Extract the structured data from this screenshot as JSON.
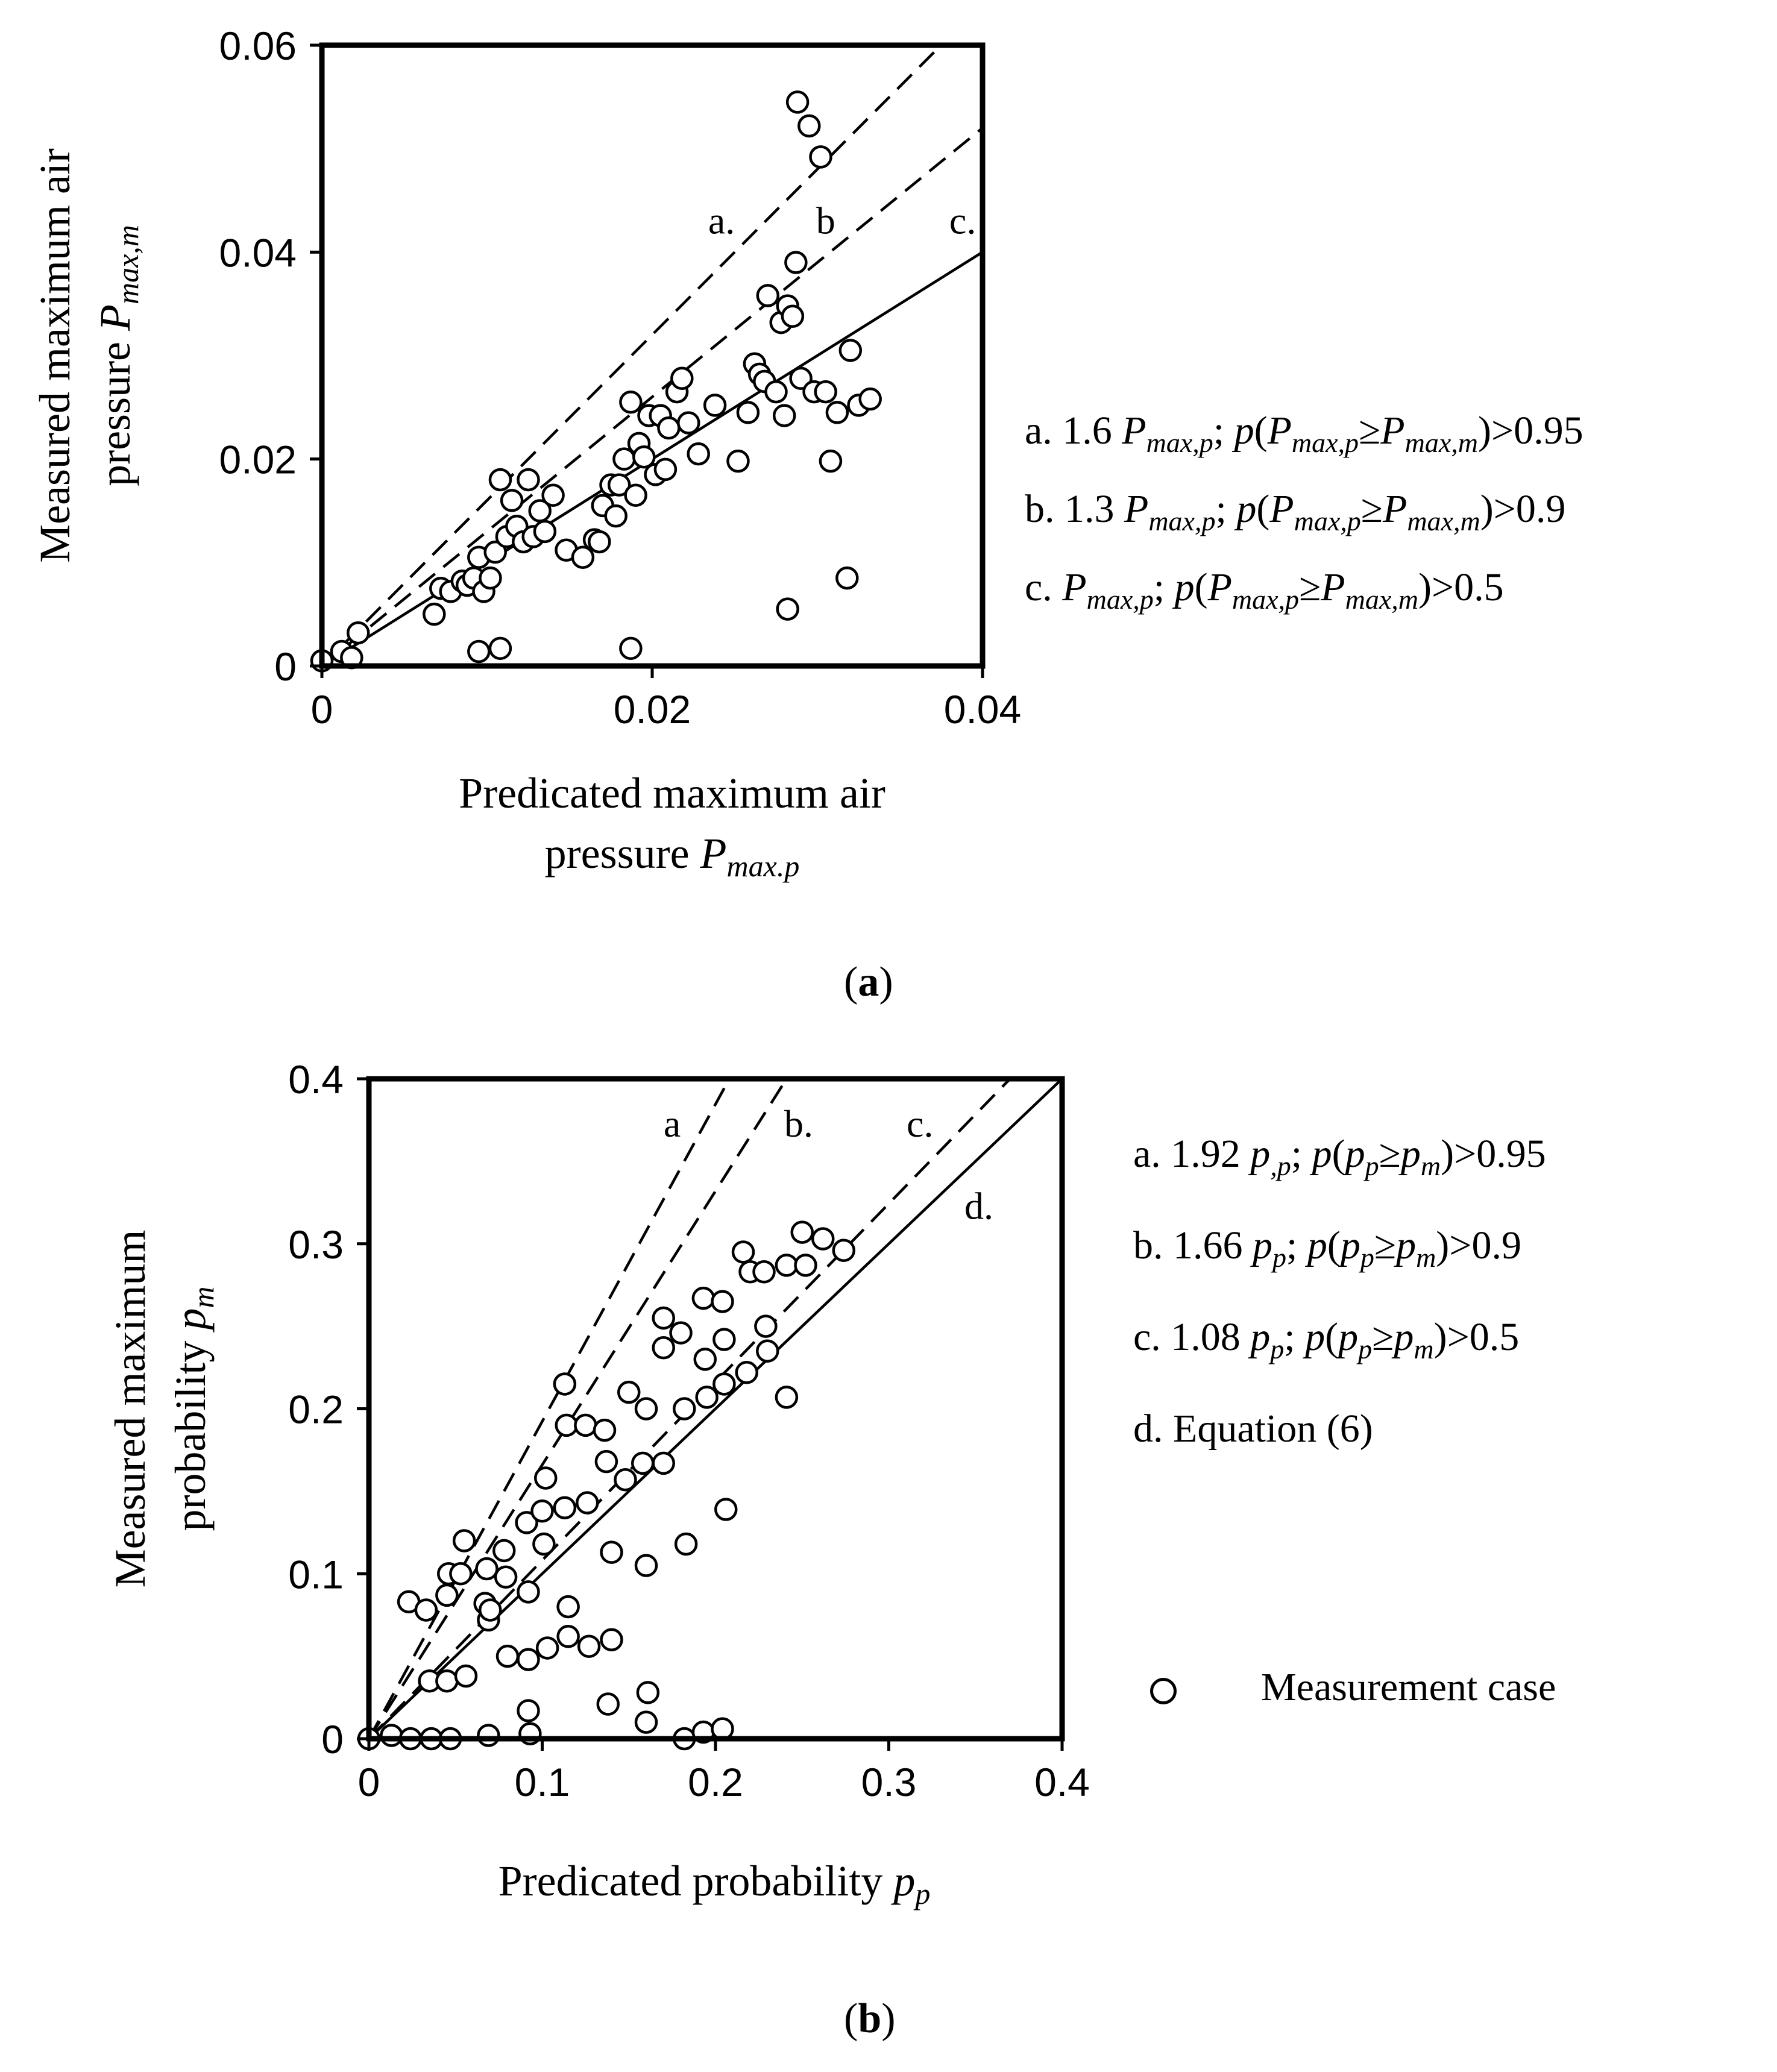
{
  "chart_data": [
    {
      "panel": "(a)",
      "panel_label": "a",
      "type": "scatter",
      "xlabel": "Predicated maximum air pressure P_max.p",
      "xlabel_lines": [
        "Predicated maximum air",
        "pressure "
      ],
      "xlabel_symbol": {
        "base": "P",
        "sub": "max.p"
      },
      "ylabel_lines": [
        "Measured maximum air",
        "pressure "
      ],
      "ylabel_symbol": {
        "base": "P",
        "sub": "max,m"
      },
      "xlim": [
        0,
        0.04
      ],
      "ylim": [
        0,
        0.06
      ],
      "xticks": [
        {
          "v": 0,
          "label": "0"
        },
        {
          "v": 0.02,
          "label": "0.02"
        },
        {
          "v": 0.04,
          "label": "0.04"
        }
      ],
      "yticks": [
        {
          "v": 0,
          "label": "0"
        },
        {
          "v": 0.02,
          "label": "0.02"
        },
        {
          "v": 0.04,
          "label": "0.04"
        },
        {
          "v": 0.06,
          "label": "0.06"
        }
      ],
      "lines": [
        {
          "id": "a",
          "label": "a.",
          "style": "dashed",
          "x": [
            0,
            0.0378
          ],
          "y": [
            0,
            0.0605
          ],
          "label_at": [
            0.0242,
            0.0418
          ]
        },
        {
          "id": "b",
          "label": "b",
          "style": "dashed",
          "x": [
            0,
            0.04
          ],
          "y": [
            0,
            0.052
          ],
          "label_at": [
            0.0305,
            0.0418
          ]
        },
        {
          "id": "c",
          "label": "c.",
          "style": "solid",
          "x": [
            0,
            0.04
          ],
          "y": [
            0,
            0.04
          ],
          "label_at": [
            0.0388,
            0.0418
          ]
        }
      ],
      "legend": [
        {
          "prefix": "a. 1.6 ",
          "k": "1.6",
          "threshold": ">0.95"
        },
        {
          "prefix": "b. 1.3 ",
          "k": "1.3",
          "threshold": ">0.9"
        },
        {
          "prefix": "c. ",
          "k": "1",
          "threshold": ">0.5"
        }
      ],
      "legend_symbols": {
        "p": "p",
        "Pp_sub": "max,p",
        "Pm_sub": "max,m",
        "P": "P",
        "geq": "≥"
      },
      "points": [
        [
          0.0,
          0.0005
        ],
        [
          0.0012,
          0.0014
        ],
        [
          0.0018,
          0.0008
        ],
        [
          0.0022,
          0.0032
        ],
        [
          0.0068,
          0.005
        ],
        [
          0.0072,
          0.0075
        ],
        [
          0.0078,
          0.0072
        ],
        [
          0.0085,
          0.0082
        ],
        [
          0.0088,
          0.0078
        ],
        [
          0.0092,
          0.0085
        ],
        [
          0.0098,
          0.0072
        ],
        [
          0.0095,
          0.0105
        ],
        [
          0.0102,
          0.0085
        ],
        [
          0.0105,
          0.011
        ],
        [
          0.0108,
          0.018
        ],
        [
          0.0112,
          0.0125
        ],
        [
          0.0115,
          0.016
        ],
        [
          0.0118,
          0.0135
        ],
        [
          0.0122,
          0.012
        ],
        [
          0.0125,
          0.018
        ],
        [
          0.0128,
          0.0125
        ],
        [
          0.0132,
          0.015
        ],
        [
          0.0135,
          0.013
        ],
        [
          0.014,
          0.0165
        ],
        [
          0.0148,
          0.0112
        ],
        [
          0.0158,
          0.0105
        ],
        [
          0.0165,
          0.0122
        ],
        [
          0.0168,
          0.012
        ],
        [
          0.017,
          0.0155
        ],
        [
          0.0175,
          0.0175
        ],
        [
          0.0178,
          0.0145
        ],
        [
          0.018,
          0.0175
        ],
        [
          0.0183,
          0.02
        ],
        [
          0.0187,
          0.0255
        ],
        [
          0.019,
          0.0165
        ],
        [
          0.0192,
          0.0215
        ],
        [
          0.0195,
          0.0202
        ],
        [
          0.0198,
          0.0242
        ],
        [
          0.0202,
          0.0185
        ],
        [
          0.0205,
          0.0242
        ],
        [
          0.0208,
          0.019
        ],
        [
          0.021,
          0.023
        ],
        [
          0.0215,
          0.0265
        ],
        [
          0.0218,
          0.0278
        ],
        [
          0.0222,
          0.0235
        ],
        [
          0.0228,
          0.0205
        ],
        [
          0.0238,
          0.0252
        ],
        [
          0.0252,
          0.0198
        ],
        [
          0.0258,
          0.0245
        ],
        [
          0.0262,
          0.0292
        ],
        [
          0.0265,
          0.0282
        ],
        [
          0.0268,
          0.0275
        ],
        [
          0.027,
          0.0358
        ],
        [
          0.0275,
          0.0265
        ],
        [
          0.0278,
          0.0332
        ],
        [
          0.028,
          0.0242
        ],
        [
          0.0282,
          0.0348
        ],
        [
          0.0285,
          0.0338
        ],
        [
          0.0287,
          0.039
        ],
        [
          0.0288,
          0.0545
        ],
        [
          0.029,
          0.0278
        ],
        [
          0.0295,
          0.0522
        ],
        [
          0.0298,
          0.0265
        ],
        [
          0.0302,
          0.0492
        ],
        [
          0.0305,
          0.0265
        ],
        [
          0.0308,
          0.0198
        ],
        [
          0.0312,
          0.0245
        ],
        [
          0.0318,
          0.0085
        ],
        [
          0.032,
          0.0305
        ],
        [
          0.0325,
          0.0252
        ],
        [
          0.0332,
          0.0258
        ],
        [
          0.0095,
          0.0014
        ],
        [
          0.0108,
          0.0017
        ],
        [
          0.0187,
          0.0017
        ],
        [
          0.0282,
          0.0055
        ]
      ]
    },
    {
      "panel": "(b)",
      "panel_label": "b",
      "type": "scatter",
      "xlabel": "Predicated probability p_p",
      "xlabel_lines": [
        "Predicated probability "
      ],
      "xlabel_symbol": {
        "base": "p",
        "sub": "p"
      },
      "ylabel_lines": [
        "Measured maximum",
        "probability "
      ],
      "ylabel_symbol": {
        "base": "p",
        "sub": "m"
      },
      "xlim": [
        0,
        0.4
      ],
      "ylim": [
        0,
        0.4
      ],
      "xticks": [
        {
          "v": 0,
          "label": "0"
        },
        {
          "v": 0.1,
          "label": "0.1"
        },
        {
          "v": 0.2,
          "label": "0.2"
        },
        {
          "v": 0.3,
          "label": "0.3"
        },
        {
          "v": 0.4,
          "label": "0.4"
        }
      ],
      "yticks": [
        {
          "v": 0,
          "label": "0"
        },
        {
          "v": 0.1,
          "label": "0.1"
        },
        {
          "v": 0.2,
          "label": "0.2"
        },
        {
          "v": 0.3,
          "label": "0.3"
        },
        {
          "v": 0.4,
          "label": "0.4"
        }
      ],
      "lines": [
        {
          "id": "a",
          "label": "a",
          "style": "dashed",
          "x": [
            0,
            0.208
          ],
          "y": [
            0,
            0.4
          ],
          "label_at": [
            0.175,
            0.365
          ]
        },
        {
          "id": "b",
          "label": "b.",
          "style": "dashed",
          "x": [
            0,
            0.241
          ],
          "y": [
            0,
            0.4
          ],
          "label_at": [
            0.248,
            0.365
          ]
        },
        {
          "id": "c",
          "label": "c.",
          "style": "dashed",
          "x": [
            0,
            0.37
          ],
          "y": [
            0,
            0.4
          ],
          "label_at": [
            0.318,
            0.365
          ]
        },
        {
          "id": "d",
          "label": "d.",
          "style": "solid",
          "x": [
            0,
            0.1,
            0.2,
            0.3,
            0.35,
            0.4
          ],
          "y": [
            0,
            0.1,
            0.2,
            0.3,
            0.35,
            0.4
          ],
          "label_at": [
            0.352,
            0.315
          ]
        }
      ],
      "legend": [
        {
          "prefix": "a. 1.92 ",
          "k": "1.92",
          "sym_sub": ",p",
          "threshold": ">0.95"
        },
        {
          "prefix": "b. 1.66 ",
          "k": "1.66",
          "sym_sub": "p",
          "threshold": ">0.9"
        },
        {
          "prefix": "c. 1.08 ",
          "k": "1.08",
          "sym_sub": "p",
          "threshold": ">0.5"
        }
      ],
      "legend_eq": "d. Equation (6)",
      "legend_marker": "Measurement case",
      "legend_symbols": {
        "p": "p",
        "pp": "p",
        "pm": "m",
        "geq": "≥"
      },
      "points": [
        [
          0.0,
          0.0
        ],
        [
          0.013,
          0.002
        ],
        [
          0.024,
          0.0
        ],
        [
          0.036,
          0.0
        ],
        [
          0.047,
          0.0
        ],
        [
          0.069,
          0.002
        ],
        [
          0.093,
          0.003
        ],
        [
          0.023,
          0.083
        ],
        [
          0.033,
          0.078
        ],
        [
          0.035,
          0.035
        ],
        [
          0.045,
          0.035
        ],
        [
          0.046,
          0.1
        ],
        [
          0.045,
          0.087
        ],
        [
          0.053,
          0.1
        ],
        [
          0.055,
          0.12
        ],
        [
          0.056,
          0.038
        ],
        [
          0.067,
          0.082
        ],
        [
          0.068,
          0.103
        ],
        [
          0.069,
          0.072
        ],
        [
          0.07,
          0.078
        ],
        [
          0.078,
          0.114
        ],
        [
          0.079,
          0.098
        ],
        [
          0.08,
          0.05
        ],
        [
          0.091,
          0.131
        ],
        [
          0.092,
          0.089
        ],
        [
          0.092,
          0.048
        ],
        [
          0.092,
          0.017
        ],
        [
          0.1,
          0.138
        ],
        [
          0.101,
          0.118
        ],
        [
          0.102,
          0.158
        ],
        [
          0.103,
          0.055
        ],
        [
          0.113,
          0.215
        ],
        [
          0.114,
          0.19
        ],
        [
          0.113,
          0.14
        ],
        [
          0.115,
          0.062
        ],
        [
          0.115,
          0.08
        ],
        [
          0.125,
          0.19
        ],
        [
          0.126,
          0.143
        ],
        [
          0.127,
          0.056
        ],
        [
          0.136,
          0.187
        ],
        [
          0.137,
          0.168
        ],
        [
          0.138,
          0.021
        ],
        [
          0.14,
          0.113
        ],
        [
          0.14,
          0.06
        ],
        [
          0.148,
          0.157
        ],
        [
          0.15,
          0.21
        ],
        [
          0.158,
          0.167
        ],
        [
          0.16,
          0.2
        ],
        [
          0.16,
          0.105
        ],
        [
          0.161,
          0.028
        ],
        [
          0.16,
          0.01
        ],
        [
          0.17,
          0.167
        ],
        [
          0.17,
          0.237
        ],
        [
          0.17,
          0.255
        ],
        [
          0.18,
          0.246
        ],
        [
          0.182,
          0.2
        ],
        [
          0.183,
          0.118
        ],
        [
          0.182,
          0.0
        ],
        [
          0.193,
          0.267
        ],
        [
          0.194,
          0.23
        ],
        [
          0.195,
          0.207
        ],
        [
          0.193,
          0.004
        ],
        [
          0.204,
          0.265
        ],
        [
          0.205,
          0.242
        ],
        [
          0.205,
          0.215
        ],
        [
          0.206,
          0.139
        ],
        [
          0.204,
          0.006
        ],
        [
          0.216,
          0.295
        ],
        [
          0.218,
          0.222
        ],
        [
          0.22,
          0.283
        ],
        [
          0.228,
          0.283
        ],
        [
          0.229,
          0.25
        ],
        [
          0.23,
          0.235
        ],
        [
          0.241,
          0.287
        ],
        [
          0.241,
          0.207
        ],
        [
          0.25,
          0.307
        ],
        [
          0.252,
          0.287
        ],
        [
          0.262,
          0.303
        ],
        [
          0.274,
          0.296
        ]
      ]
    }
  ],
  "captions": {
    "a": "a",
    "b": "b"
  }
}
